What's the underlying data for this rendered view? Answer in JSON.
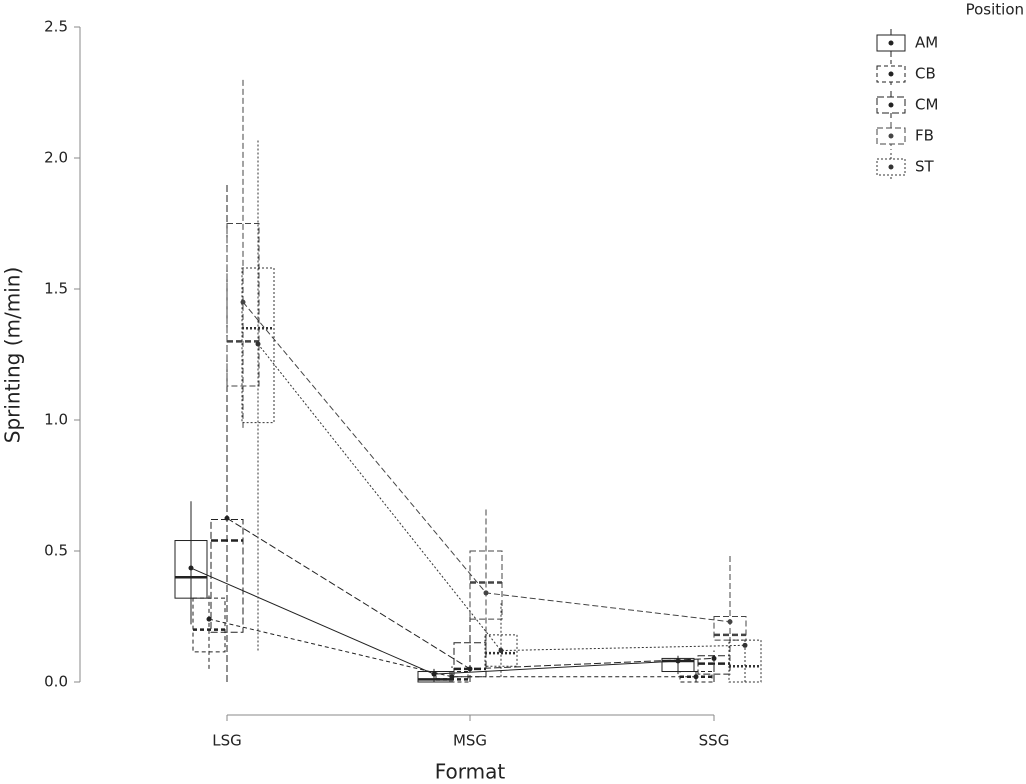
{
  "chart_data": {
    "type": "box",
    "x_label": "Format",
    "y_label": "Sprinting (m/min)",
    "legend_title": "Position",
    "categories": [
      "LSG",
      "MSG",
      "SSG"
    ],
    "ylim": [
      0,
      2.5
    ],
    "yticks": [
      {
        "value": 0,
        "label": "0.0"
      },
      {
        "value": 0.5,
        "label": "0.5"
      },
      {
        "value": 1,
        "label": "1.0"
      },
      {
        "value": 1.5,
        "label": "1.5"
      },
      {
        "value": 2,
        "label": "2.0"
      },
      {
        "value": 2.5,
        "label": "2.5"
      }
    ],
    "legend": "right",
    "series": [
      {
        "name": "AM",
        "color": "#222222",
        "dash": "none",
        "boxes": [
          {
            "min": 0.22,
            "q1": 0.32,
            "median": 0.4,
            "q3": 0.54,
            "max": 0.69,
            "mean": 0.435
          },
          {
            "min": 0.0,
            "q1": 0.0,
            "median": 0.01,
            "q3": 0.04,
            "max": 0.05,
            "mean": 0.03
          },
          {
            "min": 0.03,
            "q1": 0.04,
            "median": 0.08,
            "q3": 0.09,
            "max": 0.1,
            "mean": 0.08
          }
        ]
      },
      {
        "name": "CB",
        "color": "#222222",
        "dash": "4,3",
        "boxes": [
          {
            "min": 0.05,
            "q1": 0.115,
            "median": 0.2,
            "q3": 0.32,
            "max": 0.33,
            "mean": 0.24
          },
          {
            "min": 0.0,
            "q1": 0.0,
            "median": 0.01,
            "q3": 0.04,
            "max": 0.06,
            "mean": 0.02
          },
          {
            "min": 0.0,
            "q1": 0.0,
            "median": 0.02,
            "q3": 0.04,
            "max": 0.05,
            "mean": 0.02
          }
        ]
      },
      {
        "name": "CM",
        "color": "#222222",
        "dash": "7,3",
        "boxes": [
          {
            "min": 0.0,
            "q1": 0.19,
            "median": 0.54,
            "q3": 0.62,
            "max": 1.9,
            "mean": 0.625
          },
          {
            "min": 0.0,
            "q1": 0.02,
            "median": 0.05,
            "q3": 0.15,
            "max": 0.25,
            "mean": 0.05
          },
          {
            "min": 0.0,
            "q1": 0.03,
            "median": 0.07,
            "q3": 0.1,
            "max": 0.12,
            "mean": 0.09
          }
        ]
      },
      {
        "name": "FB",
        "color": "#444444",
        "dash": "6,3",
        "boxes": [
          {
            "min": 0.97,
            "q1": 1.13,
            "median": 1.3,
            "q3": 1.75,
            "max": 2.3,
            "mean": 1.45
          },
          {
            "min": 0.12,
            "q1": 0.24,
            "median": 0.38,
            "q3": 0.5,
            "max": 0.66,
            "mean": 0.34
          },
          {
            "min": 0.08,
            "q1": 0.16,
            "median": 0.18,
            "q3": 0.25,
            "max": 0.49,
            "mean": 0.23
          }
        ]
      },
      {
        "name": "ST",
        "color": "#333333",
        "dash": "2,2",
        "boxes": [
          {
            "min": 0.12,
            "q1": 0.99,
            "median": 1.35,
            "q3": 1.58,
            "max": 2.07,
            "mean": 1.29
          },
          {
            "min": 0.02,
            "q1": 0.06,
            "median": 0.11,
            "q3": 0.18,
            "max": 0.3,
            "mean": 0.12
          },
          {
            "min": 0.0,
            "q1": 0.0,
            "median": 0.06,
            "q3": 0.16,
            "max": 0.16,
            "mean": 0.14
          }
        ]
      }
    ]
  }
}
